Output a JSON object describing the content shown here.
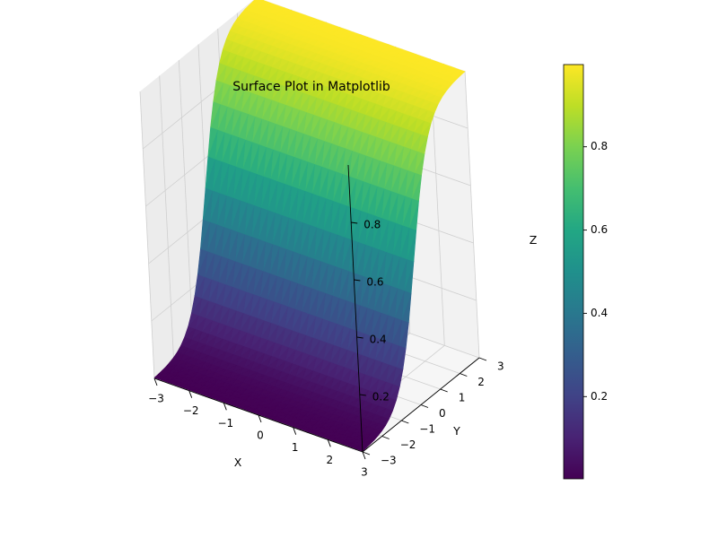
{
  "chart_data": {
    "type": "surface",
    "title": "Surface Plot in Matplotlib",
    "xlabel": "X",
    "ylabel": "Y",
    "zlabel": "Z",
    "x_range": [
      -3,
      3
    ],
    "y_range": [
      -3,
      3
    ],
    "z_range": [
      0,
      1
    ],
    "function": "z = 1 / (1 + exp(-2 * y))",
    "x_ticks": [
      -3,
      -2,
      -1,
      0,
      1,
      2,
      3
    ],
    "y_ticks": [
      -3,
      -2,
      -1,
      0,
      1,
      2,
      3
    ],
    "z_ticks": [
      0.2,
      0.4,
      0.6,
      0.8
    ],
    "x_tick_labels": [
      "−3",
      "−2",
      "−1",
      "0",
      "1",
      "2",
      "3"
    ],
    "y_tick_labels": [
      "−3",
      "−2",
      "−1",
      "0",
      "1",
      "2",
      "3"
    ],
    "z_tick_labels": [
      "0.2",
      "0.4",
      "0.6",
      "0.8"
    ],
    "colormap": "viridis",
    "colorbar_ticks": [
      0.2,
      0.4,
      0.6,
      0.8
    ],
    "colorbar_tick_labels": [
      "0.2",
      "0.4",
      "0.6",
      "0.8"
    ],
    "grid": true,
    "colorbar_placement": "right"
  }
}
